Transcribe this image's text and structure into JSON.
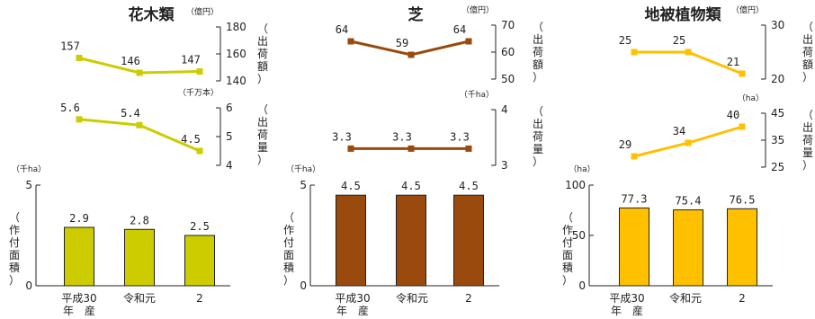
{
  "colors": {
    "ornamental_trees": "#cccc00",
    "turf": "#994a0c",
    "ground_cover": "#ffc000",
    "axis": "#222222"
  },
  "chart_data": [
    {
      "id": "ornamental_trees",
      "title": "花木類",
      "categories": [
        "平成30年　産",
        "令和元",
        "2"
      ],
      "category_lines": [
        [
          "平成30",
          "年　産"
        ],
        [
          "令和元"
        ],
        [
          "2"
        ]
      ],
      "shipment_value": {
        "type": "line",
        "values": [
          157,
          146,
          147
        ],
        "labels": [
          "157",
          "146",
          "147"
        ],
        "unit": "（億円）",
        "ylabel": "（出荷額）",
        "ticks": [
          {
            "v": 140,
            "t": "140"
          },
          {
            "v": 160,
            "t": "160"
          },
          {
            "v": 180,
            "t": "180"
          }
        ],
        "ylim": [
          140,
          180
        ]
      },
      "shipment_volume": {
        "type": "line",
        "values": [
          5.6,
          5.4,
          4.5
        ],
        "labels": [
          "5.6",
          "5.4",
          "4.5"
        ],
        "unit": "（千万本）",
        "ylabel": "（出荷量）",
        "ticks": [
          {
            "v": 4,
            "t": "4"
          },
          {
            "v": 5,
            "t": "5"
          },
          {
            "v": 6,
            "t": "6"
          }
        ],
        "ylim": [
          4,
          6
        ]
      },
      "planted_area": {
        "type": "bar",
        "values": [
          2.9,
          2.8,
          2.5
        ],
        "labels": [
          "2.9",
          "2.8",
          "2.5"
        ],
        "unit": "（千ha）",
        "ylabel": "（作付面積）",
        "ticks": [
          {
            "v": 0,
            "t": "0"
          },
          {
            "v": 5,
            "t": "5"
          }
        ],
        "ylim": [
          0,
          5
        ]
      }
    },
    {
      "id": "turf",
      "title": "芝",
      "categories": [
        "平成30年　産",
        "令和元",
        "2"
      ],
      "category_lines": [
        [
          "平成30",
          "年　産"
        ],
        [
          "令和元"
        ],
        [
          "2"
        ]
      ],
      "shipment_value": {
        "type": "line",
        "values": [
          64,
          59,
          64
        ],
        "labels": [
          "64",
          "59",
          "64"
        ],
        "unit": "（億円）",
        "ylabel": "（出荷額）",
        "ticks": [
          {
            "v": 50,
            "t": "50"
          },
          {
            "v": 60,
            "t": "60"
          },
          {
            "v": 70,
            "t": "70"
          }
        ],
        "ylim": [
          50,
          70
        ]
      },
      "shipment_volume": {
        "type": "line",
        "values": [
          3.3,
          3.3,
          3.3
        ],
        "labels": [
          "3.3",
          "3.3",
          "3.3"
        ],
        "unit": "（千ha）",
        "ylabel": "（出荷量）",
        "ticks": [
          {
            "v": 3,
            "t": "3"
          },
          {
            "v": 4,
            "t": "4"
          }
        ],
        "ylim": [
          3,
          4
        ]
      },
      "planted_area": {
        "type": "bar",
        "values": [
          4.5,
          4.5,
          4.5
        ],
        "labels": [
          "4.5",
          "4.5",
          "4.5"
        ],
        "unit": "（千ha）",
        "ylabel": "（作付面積）",
        "ticks": [
          {
            "v": 0,
            "t": "0"
          },
          {
            "v": 5,
            "t": "5"
          }
        ],
        "ylim": [
          0,
          5
        ]
      }
    },
    {
      "id": "ground_cover",
      "title": "地被植物類",
      "categories": [
        "平成30年　産",
        "令和元",
        "2"
      ],
      "category_lines": [
        [
          "平成30",
          "年　産"
        ],
        [
          "令和元"
        ],
        [
          "2"
        ]
      ],
      "shipment_value": {
        "type": "line",
        "values": [
          25,
          25,
          21
        ],
        "labels": [
          "25",
          "25",
          "21"
        ],
        "unit": "（億円）",
        "ylabel": "（出荷額）",
        "ticks": [
          {
            "v": 20,
            "t": "20"
          },
          {
            "v": 30,
            "t": "30"
          }
        ],
        "ylim": [
          20,
          30
        ]
      },
      "shipment_volume": {
        "type": "line",
        "values": [
          29,
          34,
          40
        ],
        "labels": [
          "29",
          "34",
          "40"
        ],
        "unit": "（ha）",
        "ylabel": "（出荷量）",
        "ticks": [
          {
            "v": 25,
            "t": "25"
          },
          {
            "v": 35,
            "t": "35"
          },
          {
            "v": 45,
            "t": "45"
          }
        ],
        "ylim": [
          25,
          45
        ]
      },
      "planted_area": {
        "type": "bar",
        "values": [
          77.3,
          75.4,
          76.5
        ],
        "labels": [
          "77.3",
          "75.4",
          "76.5"
        ],
        "unit": "（ha）",
        "ylabel": "（作付面積）",
        "ticks": [
          {
            "v": 0,
            "t": "0"
          },
          {
            "v": 50,
            "t": "50"
          },
          {
            "v": 100,
            "t": "100"
          }
        ],
        "ylim": [
          0,
          100
        ]
      }
    }
  ]
}
